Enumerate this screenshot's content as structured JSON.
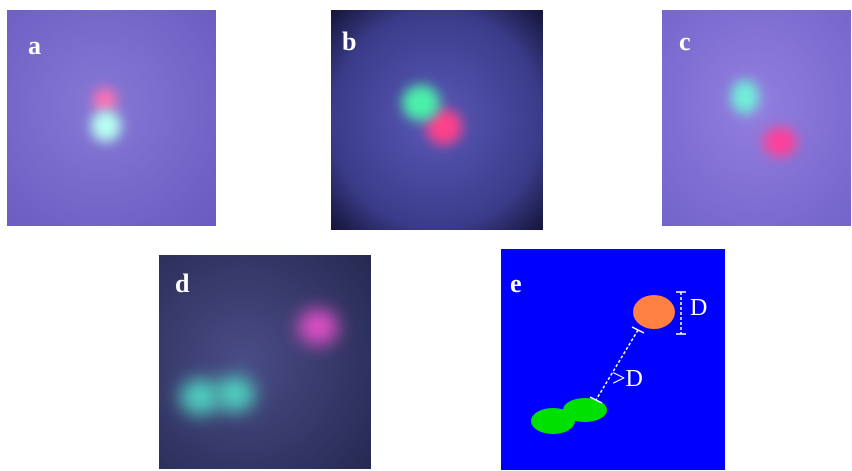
{
  "panels": [
    {
      "label": "a"
    },
    {
      "label": "b"
    },
    {
      "label": "c"
    },
    {
      "label": "d"
    },
    {
      "label": "e",
      "annotations": [
        "D",
        ">D"
      ]
    }
  ]
}
